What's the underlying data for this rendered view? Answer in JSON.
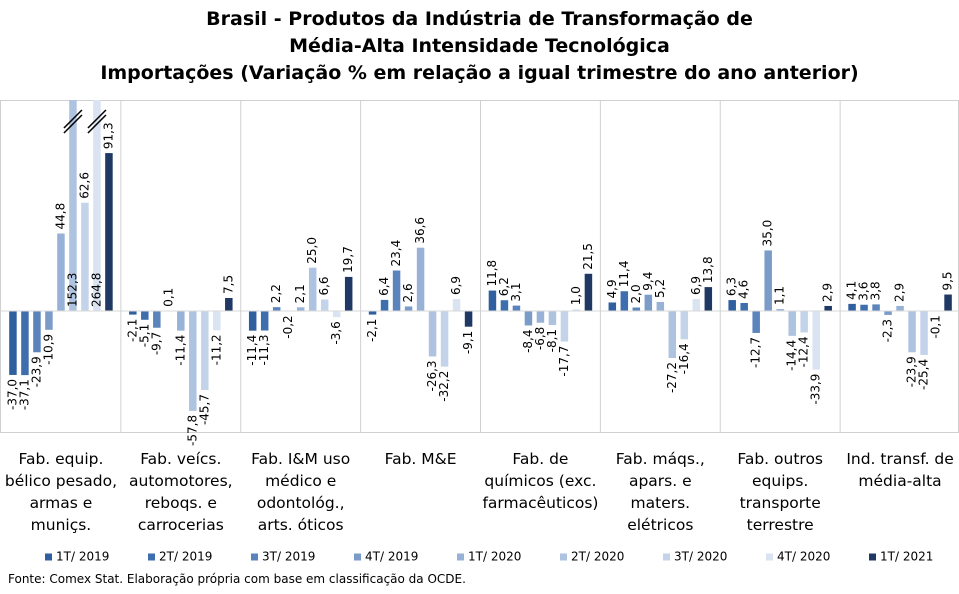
{
  "chart_data": {
    "type": "bar",
    "title": "Brasil - Produtos da Indústria de Transformação de",
    "subtitle": "Média-Alta Intensidade Tecnológica",
    "subtitle2": "Importações (Variação % em relação a igual trimestre do ano anterior)",
    "source": "Fonte: Comex Stat. Elaboração própria com base em classificação da OCDE.",
    "categories": [
      "Fab. equip. bélico pesado, armas e muniçs.",
      "Fab. veícs. automotores, reboqs. e carrocerias",
      "Fab. I&M uso médico e odontológ., arts. óticos",
      "Fab. M&E",
      "Fab. de químicos (exc. farmacêuticos)",
      "Fab. máqs., apars. e maters. elétricos",
      "Fab. outros equips. transporte terrestre",
      "Ind. transf. de média-alta"
    ],
    "ylim": [
      -70,
      122
    ],
    "series": [
      {
        "name": "1T/ 2019",
        "color": "#2f5f9f",
        "values": [
          -37.0,
          -2.1,
          -11.4,
          -2.1,
          11.8,
          4.9,
          6.3,
          4.1
        ],
        "value_labels": [
          "-37,0",
          "-2,1",
          "-11,4",
          "-2,1",
          "11,8",
          "4,9",
          "6,3",
          "4,1"
        ]
      },
      {
        "name": "2T/ 2019",
        "color": "#3e6eae",
        "values": [
          -37.1,
          -5.1,
          -11.3,
          6.4,
          6.2,
          11.4,
          4.6,
          3.6
        ],
        "value_labels": [
          "-37,1",
          "-5,1",
          "-11,3",
          "6,4",
          "6,2",
          "11,4",
          "4,6",
          "3,6"
        ]
      },
      {
        "name": "3T/ 2019",
        "color": "#5a84bb",
        "values": [
          -23.9,
          -9.7,
          2.2,
          23.4,
          3.1,
          2.0,
          -12.7,
          3.8
        ],
        "value_labels": [
          "-23,9",
          "-9,7",
          "2,2",
          "23,4",
          "3,1",
          "2,0",
          "-12,7",
          "3,8"
        ]
      },
      {
        "name": "4T/ 2019",
        "color": "#7b9cc8",
        "values": [
          -10.9,
          0.1,
          -0.2,
          2.6,
          -8.4,
          9.4,
          35.0,
          -2.3
        ],
        "value_labels": [
          "-10,9",
          "0,1",
          "-0,2",
          "2,6",
          "-8,4",
          "9,4",
          "35,0",
          "-2,3"
        ]
      },
      {
        "name": "1T/ 2020",
        "color": "#97b2d6",
        "values": [
          44.8,
          -11.4,
          2.1,
          36.6,
          -6.8,
          5.2,
          1.1,
          2.9
        ],
        "value_labels": [
          "44,8",
          "-11,4",
          "2,1",
          "36,6",
          "-6,8",
          "5,2",
          "1,1",
          "2,9"
        ]
      },
      {
        "name": "2T/ 2020",
        "color": "#aec3e0",
        "values": [
          152.3,
          -57.8,
          25.0,
          -26.3,
          -8.1,
          -27.2,
          -14.4,
          -23.9
        ],
        "value_labels": [
          "152,3",
          "-57,8",
          "25,0",
          "-26,3",
          "-8,1",
          "-27,2",
          "-14,4",
          "-23,9"
        ]
      },
      {
        "name": "3T/ 2020",
        "color": "#c3d3ea",
        "values": [
          62.6,
          -45.7,
          6.6,
          -32.2,
          -17.7,
          -16.4,
          -12.4,
          -25.4
        ],
        "value_labels": [
          "62,6",
          "-45,7",
          "6,6",
          "-32,2",
          "-17,7",
          "-16,4",
          "-12,4",
          "-25,4"
        ]
      },
      {
        "name": "4T/ 2020",
        "color": "#d9e3f2",
        "values": [
          264.8,
          -11.2,
          -3.6,
          6.9,
          1.0,
          6.9,
          -33.9,
          -0.1
        ],
        "value_labels": [
          "264,8",
          "-11,2",
          "-3,6",
          "6,9",
          "1,0",
          "6,9",
          "-33,9",
          "-0,1"
        ]
      },
      {
        "name": "1T/ 2021",
        "color": "#1f3864",
        "values": [
          91.3,
          7.5,
          19.7,
          -9.1,
          21.5,
          13.8,
          2.9,
          9.5
        ],
        "value_labels": [
          "91,3",
          "7,5",
          "19,7",
          "-9,1",
          "21,5",
          "13,8",
          "2,9",
          "9,5"
        ]
      }
    ]
  }
}
